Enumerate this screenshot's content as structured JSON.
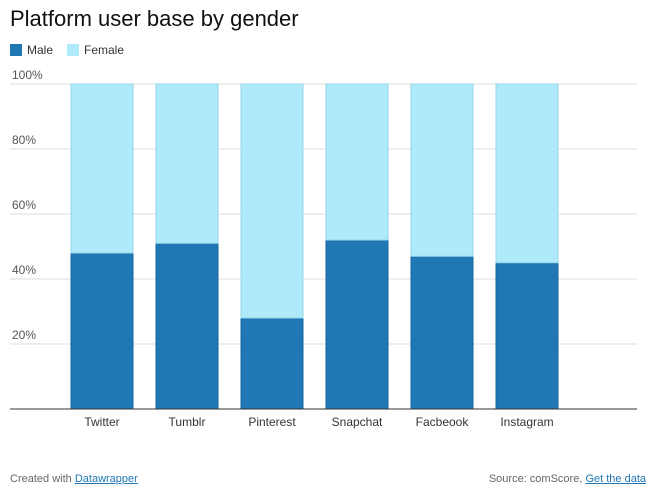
{
  "chart_data": {
    "type": "bar",
    "stacked": true,
    "title": "Platform user base by gender",
    "categories": [
      "Twitter",
      "Tumblr",
      "Pinterest",
      "Snapchat",
      "Facbeook",
      "Instagram"
    ],
    "series": [
      {
        "name": "Male",
        "values": [
          48,
          51,
          28,
          52,
          47,
          45
        ],
        "color": "#1f77b4"
      },
      {
        "name": "Female",
        "values": [
          52,
          49,
          72,
          48,
          53,
          55
        ],
        "color": "#aeeafa"
      }
    ],
    "y_ticks": [
      "20%",
      "40%",
      "60%",
      "80%",
      "100%"
    ],
    "ylim": [
      0,
      100
    ],
    "grid": true,
    "legend_position": "top-left",
    "xlabel": "",
    "ylabel": ""
  },
  "footer": {
    "created_prefix": "Created with",
    "created_link": "Datawrapper",
    "source_prefix": "Source: comScore,",
    "source_link": "Get the data"
  }
}
